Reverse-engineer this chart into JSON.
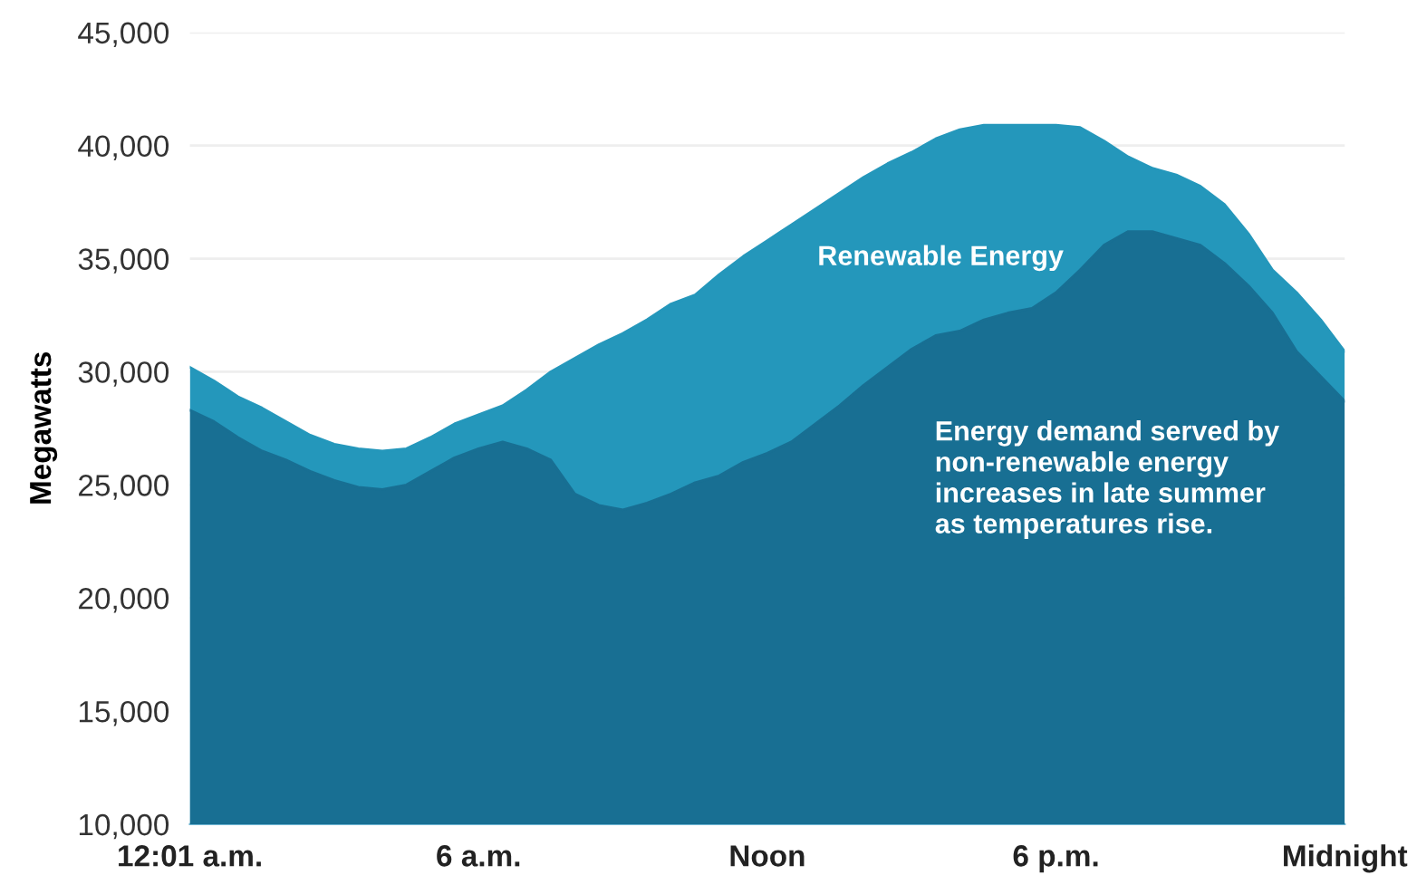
{
  "chart_data": {
    "type": "area",
    "ylabel": "Megawatts",
    "categories": [
      "12:01 a.m.",
      null,
      null,
      null,
      null,
      null,
      null,
      null,
      null,
      null,
      null,
      null,
      "6 a.m.",
      null,
      null,
      null,
      null,
      null,
      null,
      null,
      null,
      null,
      null,
      null,
      "Noon",
      null,
      null,
      null,
      null,
      null,
      null,
      null,
      null,
      null,
      null,
      null,
      "6 p.m.",
      null,
      null,
      null,
      null,
      null,
      null,
      null,
      null,
      null,
      null,
      null,
      "Midnight"
    ],
    "ylim": [
      10000,
      45000
    ],
    "yticks": [
      {
        "value": 10000,
        "label": "10,000"
      },
      {
        "value": 15000,
        "label": "15,000"
      },
      {
        "value": 20000,
        "label": "20,000"
      },
      {
        "value": 25000,
        "label": "25,000"
      },
      {
        "value": 30000,
        "label": "30,000"
      },
      {
        "value": 35000,
        "label": "35,000"
      },
      {
        "value": 40000,
        "label": "40,000"
      },
      {
        "value": 45000,
        "label": "45,000"
      }
    ],
    "grid": "y",
    "series": [
      {
        "color": "#2497bb",
        "values": [
          30200,
          29600,
          28900,
          28400,
          27800,
          27200,
          26800,
          26600,
          26500,
          26600,
          27100,
          27700,
          28100,
          28500,
          29200,
          30000,
          30600,
          31200,
          31700,
          32300,
          33000,
          33400,
          34300,
          35100,
          35800,
          36500,
          37200,
          37900,
          38600,
          39200,
          39700,
          40300,
          40700,
          40900,
          40900,
          40900,
          40900,
          40800,
          40200,
          39500,
          39000,
          38700,
          38200,
          37400,
          36100,
          34500,
          33500,
          32300,
          30900
        ]
      },
      {
        "color": "#186f93",
        "values": [
          28300,
          27800,
          27100,
          26500,
          26100,
          25600,
          25200,
          24900,
          24800,
          25000,
          25600,
          26200,
          26600,
          26900,
          26600,
          26100,
          24600,
          24100,
          23900,
          24200,
          24600,
          25100,
          25400,
          26000,
          26400,
          26900,
          27700,
          28500,
          29400,
          30200,
          31000,
          31600,
          31800,
          32300,
          32600,
          32800,
          33500,
          34500,
          35600,
          36200,
          36200,
          35900,
          35600,
          34800,
          33800,
          32600,
          30900,
          29800,
          28700
        ]
      }
    ],
    "annotations": [
      "Renewable Energy",
      "Energy demand served by\nnon-renewable energy\nincreases in late summer\nas temperatures rise."
    ]
  }
}
